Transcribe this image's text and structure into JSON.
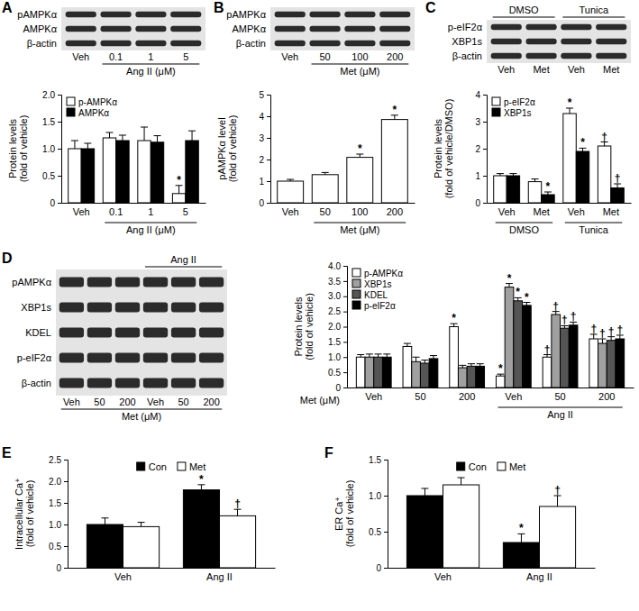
{
  "chart_data": [
    {
      "type": "bar",
      "title": "A",
      "categories": [
        "Veh",
        "0.1",
        "1",
        "5"
      ],
      "x_groups": [
        null,
        "Ang II (μM)",
        "Ang II (μM)",
        "Ang II (μM)"
      ],
      "y_label": [
        "Protein levels",
        "(fold of vehicle)"
      ],
      "ylim": [
        0,
        2
      ],
      "yticks": [
        0,
        0.5,
        {
          "value": 1,
          "label": "1.0"
        },
        1.5,
        {
          "value": 2,
          "label": "2.0"
        }
      ],
      "legend": "top-left",
      "series": [
        {
          "name": "p-AMPKα",
          "color": "#ffffff",
          "values": [
            1.0,
            1.2,
            1.15,
            0.17
          ],
          "errors": [
            0.15,
            0.1,
            0.25,
            0.15
          ],
          "annotations": [
            null,
            null,
            null,
            "*"
          ]
        },
        {
          "name": "AMPKα",
          "color": "#000000",
          "values": [
            1.0,
            1.15,
            1.12,
            1.15
          ],
          "errors": [
            0.1,
            0.1,
            0.12,
            0.18
          ]
        }
      ]
    },
    {
      "type": "bar",
      "title": "B",
      "categories": [
        "Veh",
        "50",
        "100",
        "200"
      ],
      "x_groups": [
        null,
        "Met (μM)",
        "Met (μM)",
        "Met (μM)"
      ],
      "y_label": [
        "pAMPKα level",
        "(fold of vehicle)"
      ],
      "ylim": [
        0,
        5
      ],
      "yticks": [
        0,
        1,
        2,
        3,
        4,
        5
      ],
      "series": [
        {
          "color": "#ffffff",
          "values": [
            1.0,
            1.3,
            2.1,
            3.85
          ],
          "errors": [
            0.08,
            0.1,
            0.15,
            0.2
          ],
          "annotations": [
            null,
            null,
            "*",
            "*"
          ]
        }
      ]
    },
    {
      "type": "bar",
      "title": "C",
      "categories": [
        "Veh",
        "Met",
        "Veh",
        "Met"
      ],
      "x_groups": [
        "DMSO",
        "DMSO",
        "Tunica",
        "Tunica"
      ],
      "y_label": [
        "Protein levels",
        "(fold of vehicle/DMSO)"
      ],
      "ylim": [
        0,
        4
      ],
      "yticks": [
        0,
        1,
        2,
        3,
        4
      ],
      "legend": "top-left",
      "series": [
        {
          "name": "p-eIF2α",
          "color": "#ffffff",
          "values": [
            1.0,
            0.78,
            3.3,
            2.1
          ],
          "errors": [
            0.08,
            0.1,
            0.2,
            0.15
          ],
          "annotations": [
            null,
            null,
            "*",
            "†"
          ]
        },
        {
          "name": "XBP1s",
          "color": "#000000",
          "values": [
            1.0,
            0.3,
            1.9,
            0.55
          ],
          "errors": [
            0.08,
            0.1,
            0.12,
            0.15
          ],
          "annotations": [
            null,
            "*",
            "*",
            "†"
          ]
        }
      ]
    },
    {
      "type": "bar",
      "title": "D",
      "categories": [
        "Veh",
        "50",
        "200",
        "Veh",
        "50",
        "200"
      ],
      "x_label": "Met (μM)",
      "x_groups": [
        null,
        null,
        null,
        "Ang II",
        "Ang II",
        "Ang II"
      ],
      "y_label": [
        "Protein levels",
        "(fold of vehicle)"
      ],
      "ylim": [
        0,
        4
      ],
      "yticks": [
        0,
        0.5,
        {
          "value": 1,
          "label": "1.0"
        },
        1.5,
        {
          "value": 2,
          "label": "2.0"
        },
        2.5,
        {
          "value": 3,
          "label": "3.0"
        },
        3.5,
        {
          "value": 4,
          "label": "4.0"
        }
      ],
      "legend": "top-left",
      "series": [
        {
          "name": "p-AMPKα",
          "color": "#ffffff",
          "values": [
            1.0,
            1.35,
            2.0,
            0.38,
            1.0,
            1.6
          ],
          "errors": [
            0.08,
            0.1,
            0.1,
            0.06,
            0.08,
            0.15
          ],
          "annotations": [
            null,
            null,
            "*",
            "*",
            "†",
            "†"
          ]
        },
        {
          "name": "XBP1s",
          "color": "#a0a0a0",
          "values": [
            1.0,
            0.85,
            0.65,
            3.3,
            2.4,
            1.45
          ],
          "errors": [
            0.1,
            0.15,
            0.08,
            0.12,
            0.1,
            0.15
          ],
          "annotations": [
            null,
            null,
            null,
            "*",
            "†",
            "†"
          ]
        },
        {
          "name": "KDEL",
          "color": "#555555",
          "values": [
            1.0,
            0.8,
            0.7,
            2.85,
            1.95,
            1.55
          ],
          "errors": [
            0.1,
            0.1,
            0.08,
            0.1,
            0.08,
            0.12
          ],
          "annotations": [
            null,
            null,
            null,
            "*",
            "†",
            "†"
          ]
        },
        {
          "name": "p-eIF2α",
          "color": "#000000",
          "values": [
            1.0,
            0.95,
            0.7,
            2.7,
            2.05,
            1.6
          ],
          "errors": [
            0.1,
            0.1,
            0.08,
            0.1,
            0.1,
            0.12
          ],
          "annotations": [
            null,
            null,
            null,
            "*",
            "†",
            "†"
          ]
        }
      ]
    },
    {
      "type": "bar",
      "title": "E",
      "categories": [
        "Veh",
        "Ang II"
      ],
      "y_label": [
        "Intracellular Ca⁺",
        "(fold of vehicle)"
      ],
      "ylim": [
        0,
        2.5
      ],
      "yticks": [
        0,
        0.5,
        {
          "value": 1,
          "label": "1.0"
        },
        1.5,
        {
          "value": 2,
          "label": "2.0"
        },
        2.5
      ],
      "legend": "top",
      "series": [
        {
          "name": "Con",
          "color": "#000000",
          "values": [
            1.0,
            1.8
          ],
          "errors": [
            0.15,
            0.12
          ],
          "annotations": [
            null,
            "*"
          ]
        },
        {
          "name": "Met",
          "color": "#ffffff",
          "values": [
            0.95,
            1.2
          ],
          "errors": [
            0.1,
            0.15
          ],
          "annotations": [
            null,
            "†"
          ]
        }
      ]
    },
    {
      "type": "bar",
      "title": "F",
      "categories": [
        "Veh",
        "Ang II"
      ],
      "y_label": [
        "ER Ca⁺",
        "(fold of vehicle)"
      ],
      "ylim": [
        0,
        1.5
      ],
      "yticks": [
        0,
        0.5,
        {
          "value": 1,
          "label": "1.0"
        },
        1.5
      ],
      "legend": "top",
      "series": [
        {
          "name": "Con",
          "color": "#000000",
          "values": [
            1.0,
            0.35
          ],
          "errors": [
            0.1,
            0.12
          ],
          "annotations": [
            null,
            "*"
          ]
        },
        {
          "name": "Met",
          "color": "#ffffff",
          "values": [
            1.15,
            0.85
          ],
          "errors": [
            0.1,
            0.15
          ],
          "annotations": [
            null,
            "†"
          ]
        }
      ]
    }
  ],
  "blots": [
    {
      "rows": [
        "pAMPKα",
        "AMPKα",
        "β-actin"
      ],
      "lanes": [
        "Veh",
        "0.1",
        "1",
        "5"
      ],
      "lane_groups": [
        null,
        "Ang II (μM)",
        "Ang II (μM)",
        "Ang II (μM)"
      ]
    },
    {
      "rows": [
        "pAMPKα",
        "AMPKα",
        "β-actin"
      ],
      "lanes": [
        "Veh",
        "50",
        "100",
        "200"
      ],
      "lane_groups": [
        null,
        "Met (μM)",
        "Met (μM)",
        "Met (μM)"
      ]
    },
    {
      "rows": [
        "p-eIF2α",
        "XBP1s",
        "β-actin"
      ],
      "lanes": [
        "Veh",
        "Met",
        "Veh",
        "Met"
      ],
      "lane_groups_top": [
        "DMSO",
        "DMSO",
        "Tunica",
        "Tunica"
      ]
    },
    {
      "rows": [
        "pAMPKα",
        "XBP1s",
        "KDEL",
        "p-eIF2α",
        "β-actin"
      ],
      "lanes": [
        "Veh",
        "50",
        "200",
        "Veh",
        "50",
        "200"
      ],
      "lane_groups_top": [
        null,
        null,
        null,
        "Ang II",
        "Ang II",
        "Ang II"
      ],
      "lane_groups": [
        "Met (μM)",
        "Met (μM)",
        "Met (μM)",
        "Met (μM)",
        "Met (μM)",
        "Met (μM)"
      ]
    }
  ]
}
